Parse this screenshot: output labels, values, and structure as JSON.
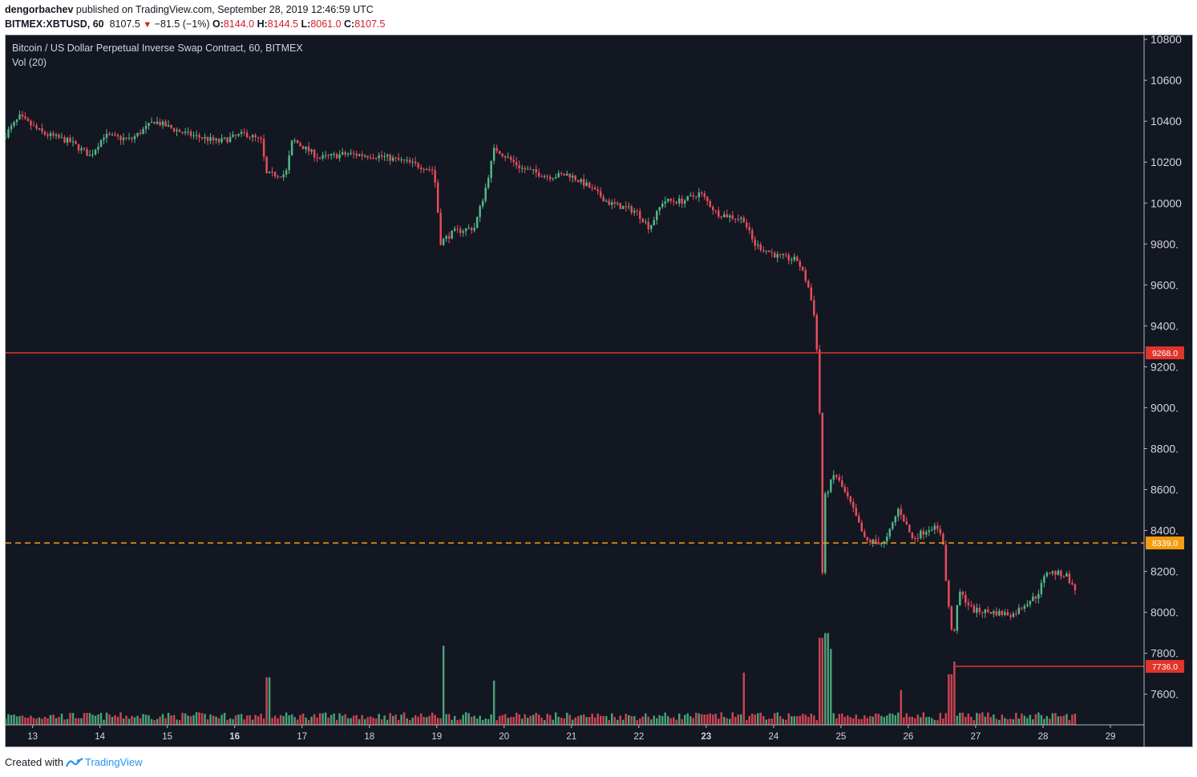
{
  "header": {
    "author": "dengorbachev",
    "published_text": "published on TradingView.com, September 28, 2019 12:46:59 UTC",
    "symbol": "BITMEX:XBTUSD, 60",
    "last": "8107.5",
    "change": "−81.5 (−1%)",
    "o_label": "O:",
    "o_value": "8144.0",
    "h_label": "H:",
    "h_value": "8144.5",
    "l_label": "L:",
    "l_value": "8061.0",
    "c_label": "C:",
    "c_value": "8107.5"
  },
  "legend": {
    "title": "Bitcoin / US Dollar Perpetual Inverse Swap Contract, 60, BITMEX",
    "volume": "Vol (20)"
  },
  "footer": {
    "created_with": "Created with",
    "brand": "TradingView"
  },
  "colors": {
    "background": "#131722",
    "up": "#53b987",
    "down": "#eb4d5c",
    "level_line": "#e0352b",
    "dashed_line": "#f59d12",
    "axis_text": "#d1d4dc"
  },
  "chart_data": {
    "type": "candlestick",
    "y_ticks": [
      "10800",
      "10600",
      "10400",
      "10200",
      "10000",
      "9800.",
      "9600.",
      "9400.",
      "9200.",
      "9000.",
      "8800.",
      "8600.",
      "8400.",
      "8200.",
      "8000.",
      "7800.",
      "7600."
    ],
    "ylim": [
      7450,
      10820
    ],
    "x_ticks": [
      {
        "label": "13",
        "day": 13,
        "bold": false
      },
      {
        "label": "14",
        "day": 14,
        "bold": false
      },
      {
        "label": "15",
        "day": 15,
        "bold": false
      },
      {
        "label": "16",
        "day": 16,
        "bold": true
      },
      {
        "label": "17",
        "day": 17,
        "bold": false
      },
      {
        "label": "18",
        "day": 18,
        "bold": false
      },
      {
        "label": "19",
        "day": 19,
        "bold": false
      },
      {
        "label": "20",
        "day": 20,
        "bold": false
      },
      {
        "label": "21",
        "day": 21,
        "bold": false
      },
      {
        "label": "22",
        "day": 22,
        "bold": false
      },
      {
        "label": "23",
        "day": 23,
        "bold": true
      },
      {
        "label": "24",
        "day": 24,
        "bold": false
      },
      {
        "label": "25",
        "day": 25,
        "bold": false
      },
      {
        "label": "26",
        "day": 26,
        "bold": false
      },
      {
        "label": "27",
        "day": 27,
        "bold": false
      },
      {
        "label": "28",
        "day": 28,
        "bold": false
      },
      {
        "label": "29",
        "day": 29,
        "bold": false
      }
    ],
    "xlim": [
      12.6,
      29.5
    ],
    "horizontal_lines": [
      {
        "price": 9268.0,
        "label": "9268.0",
        "style": "solid",
        "color": "#e0352b",
        "from_day": 12.6
      },
      {
        "price": 8339.0,
        "label": "8339.0",
        "style": "dashed",
        "color": "#f59d12",
        "from_day": 12.6
      },
      {
        "price": 7736.0,
        "label": "7736.0",
        "style": "solid",
        "color": "#e0352b",
        "from_day": 26.7
      }
    ],
    "price_path": [
      [
        12.6,
        10320
      ],
      [
        12.85,
        10420
      ],
      [
        13.2,
        10340
      ],
      [
        13.6,
        10300
      ],
      [
        13.9,
        10230
      ],
      [
        14.1,
        10330
      ],
      [
        14.5,
        10310
      ],
      [
        14.85,
        10400
      ],
      [
        15.3,
        10340
      ],
      [
        15.8,
        10300
      ],
      [
        16.2,
        10340
      ],
      [
        16.45,
        10300
      ],
      [
        16.5,
        10140
      ],
      [
        16.8,
        10140
      ],
      [
        16.9,
        10310
      ],
      [
        17.3,
        10220
      ],
      [
        17.7,
        10240
      ],
      [
        18.2,
        10230
      ],
      [
        18.6,
        10200
      ],
      [
        19.0,
        10160
      ],
      [
        19.1,
        9810
      ],
      [
        19.3,
        9860
      ],
      [
        19.6,
        9880
      ],
      [
        19.75,
        10050
      ],
      [
        19.9,
        10270
      ],
      [
        20.3,
        10170
      ],
      [
        20.7,
        10130
      ],
      [
        21.0,
        10140
      ],
      [
        21.3,
        10080
      ],
      [
        21.6,
        10000
      ],
      [
        22.0,
        9960
      ],
      [
        22.2,
        9880
      ],
      [
        22.4,
        10010
      ],
      [
        22.7,
        10010
      ],
      [
        22.95,
        10050
      ],
      [
        23.2,
        9950
      ],
      [
        23.6,
        9920
      ],
      [
        23.75,
        9800
      ],
      [
        24.1,
        9740
      ],
      [
        24.4,
        9720
      ],
      [
        24.55,
        9600
      ],
      [
        24.65,
        9450
      ],
      [
        24.72,
        9100
      ],
      [
        24.76,
        8120
      ],
      [
        24.8,
        8560
      ],
      [
        24.95,
        8680
      ],
      [
        25.2,
        8520
      ],
      [
        25.4,
        8350
      ],
      [
        25.7,
        8340
      ],
      [
        25.9,
        8510
      ],
      [
        26.1,
        8360
      ],
      [
        26.4,
        8420
      ],
      [
        26.55,
        8380
      ],
      [
        26.6,
        8150
      ],
      [
        26.7,
        7860
      ],
      [
        26.8,
        8100
      ],
      [
        27.0,
        8010
      ],
      [
        27.3,
        8000
      ],
      [
        27.6,
        7990
      ],
      [
        27.8,
        8050
      ],
      [
        27.95,
        8080
      ],
      [
        28.1,
        8200
      ],
      [
        28.4,
        8180
      ],
      [
        28.5,
        8110
      ]
    ],
    "volume_spikes": [
      {
        "day": 16.5,
        "rel": 0.3
      },
      {
        "day": 19.1,
        "rel": 0.5
      },
      {
        "day": 19.85,
        "rel": 0.28
      },
      {
        "day": 23.55,
        "rel": 0.33
      },
      {
        "day": 24.7,
        "rel": 0.55
      },
      {
        "day": 24.78,
        "rel": 0.58
      },
      {
        "day": 24.82,
        "rel": 0.48
      },
      {
        "day": 26.62,
        "rel": 0.32
      },
      {
        "day": 26.68,
        "rel": 0.4
      },
      {
        "day": 25.9,
        "rel": 0.22
      }
    ]
  }
}
